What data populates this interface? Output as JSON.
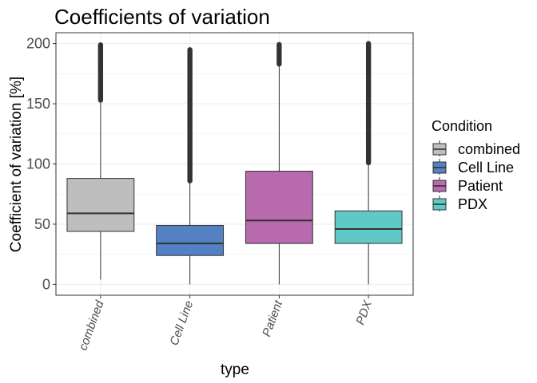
{
  "chart_data": {
    "type": "boxplot",
    "title": "Coefficients of variation",
    "xlabel": "type",
    "ylabel": "Coefficient of variation [%]",
    "ylim": [
      -9,
      209
    ],
    "yticks": [
      0,
      50,
      100,
      150,
      200
    ],
    "grid": true,
    "legend": {
      "title": "Condition",
      "position": "right"
    },
    "categories": [
      "combined",
      "Cell Line",
      "Patient",
      "PDX"
    ],
    "series": [
      {
        "name": "combined",
        "color": "#bebebe",
        "min": 4,
        "q1": 44,
        "median": 59,
        "q3": 88,
        "whisker_high": 153,
        "outliers_from": 153,
        "outliers_to": 199
      },
      {
        "name": "Cell Line",
        "color": "#5480c4",
        "min": 0,
        "q1": 24,
        "median": 34,
        "q3": 49,
        "whisker_high": 86,
        "outliers_from": 86,
        "outliers_to": 195
      },
      {
        "name": "Patient",
        "color": "#b76aac",
        "min": 0,
        "q1": 34,
        "median": 53,
        "q3": 94,
        "whisker_high": 183,
        "outliers_from": 183,
        "outliers_to": 200
      },
      {
        "name": "PDX",
        "color": "#5ec9c6",
        "min": 0,
        "q1": 34,
        "median": 46,
        "q3": 61,
        "whisker_high": 101,
        "outliers_from": 101,
        "outliers_to": 200
      }
    ]
  }
}
